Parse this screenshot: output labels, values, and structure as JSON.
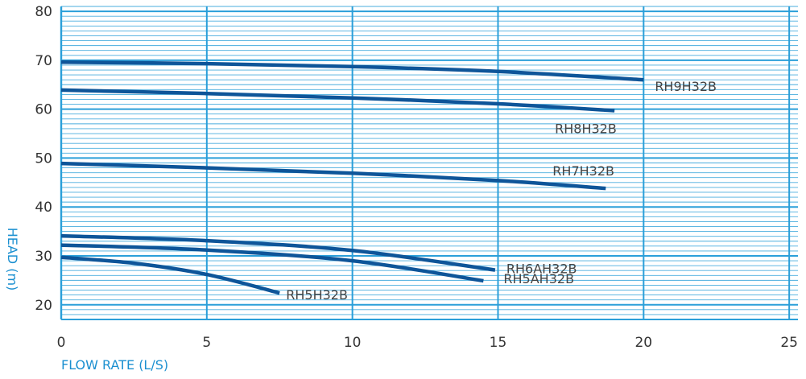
{
  "chart_data": {
    "type": "line",
    "xlabel": "FLOW RATE (L/S)",
    "ylabel": "HEAD (m)",
    "xlim": [
      0,
      25.3
    ],
    "ylim": [
      17,
      81
    ],
    "x_ticks": [
      "0",
      "5",
      "10",
      "15",
      "20",
      "25"
    ],
    "y_ticks": [
      "20",
      "30",
      "40",
      "50",
      "60",
      "70",
      "80"
    ],
    "grid": {
      "major": true,
      "minor_y": true
    },
    "colors": {
      "line": "#0e5599",
      "grid": "#2b9fd9",
      "axis_title": "#1a8fd0"
    },
    "series": [
      {
        "name": "RH9H32B",
        "x": [
          0,
          5,
          10,
          15,
          20
        ],
        "y": [
          69.6,
          69.3,
          68.7,
          67.7,
          66.0
        ]
      },
      {
        "name": "RH8H32B",
        "x": [
          0,
          5,
          10,
          15,
          19
        ],
        "y": [
          63.9,
          63.2,
          62.3,
          61.1,
          59.7
        ]
      },
      {
        "name": "RH7H32B",
        "x": [
          0,
          5,
          10,
          15,
          18.7
        ],
        "y": [
          48.9,
          48.0,
          46.9,
          45.4,
          43.8
        ]
      },
      {
        "name": "RH6AH32B",
        "x": [
          0,
          5,
          10,
          14.9
        ],
        "y": [
          34.1,
          33.1,
          31.1,
          27.1
        ]
      },
      {
        "name": "RH5AH32B",
        "x": [
          0,
          5,
          10,
          14.5
        ],
        "y": [
          32.2,
          31.2,
          29.0,
          24.9
        ]
      },
      {
        "name": "RH5H32B",
        "x": [
          0,
          2.5,
          5,
          7.5
        ],
        "y": [
          29.7,
          28.5,
          26.2,
          22.4
        ]
      }
    ]
  }
}
